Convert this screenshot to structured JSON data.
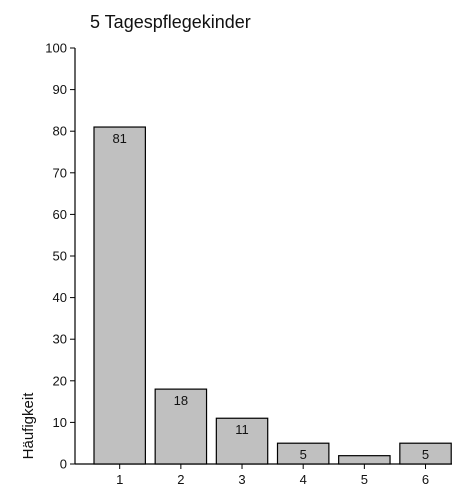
{
  "chart_data": {
    "type": "bar",
    "title": "5 Tagespflegekinder",
    "xlabel": "",
    "ylabel": "Häufigkeit",
    "categories": [
      "1",
      "2",
      "3",
      "4",
      "5",
      "6"
    ],
    "values": [
      81,
      18,
      11,
      5,
      2,
      5
    ],
    "data_labels": [
      "81",
      "18",
      "11",
      "5",
      "",
      "5"
    ],
    "ylim": [
      0,
      100
    ],
    "yticks": [
      0,
      10,
      20,
      30,
      40,
      50,
      60,
      70,
      80,
      90,
      100
    ],
    "grid": false,
    "bar_color": "#c0c0c0"
  }
}
